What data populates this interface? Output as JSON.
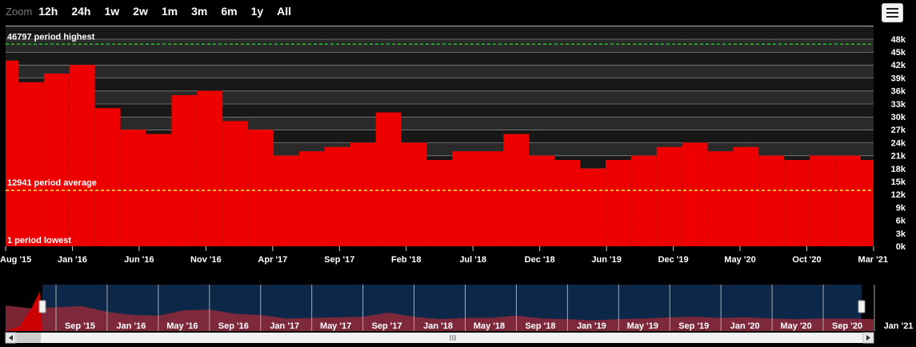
{
  "zoom": {
    "label": "Zoom",
    "buttons": [
      "12h",
      "24h",
      "1w",
      "2w",
      "1m",
      "3m",
      "6m",
      "1y",
      "All"
    ]
  },
  "menu": {
    "icon": "hamburger-menu-icon"
  },
  "colors": {
    "bar": "#ee0000",
    "highest_line": "#22bb22",
    "average_line": "#eeee33",
    "navigator_fill": "#8a2a3a",
    "navigator_bg": "#0c2748"
  },
  "chart_data": {
    "type": "bar",
    "title": "",
    "xlabel": "",
    "ylabel": "",
    "ylim": [
      0,
      50000
    ],
    "y_ticks": [
      "0k",
      "3k",
      "6k",
      "9k",
      "12k",
      "15k",
      "18k",
      "21k",
      "24k",
      "27k",
      "30k",
      "33k",
      "36k",
      "39k",
      "42k",
      "45k",
      "48k"
    ],
    "x_ticks": [
      "Aug '15",
      "Jan '16",
      "Jun '16",
      "Nov '16",
      "Apr '17",
      "Sep '17",
      "Feb '18",
      "Jul '18",
      "Dec '18",
      "Jun '19",
      "Dec '19",
      "May '20",
      "Oct '20",
      "Mar '21"
    ],
    "series": [
      {
        "x": [
          "Aug '15",
          "Oct '15",
          "Dec '15",
          "Feb '16",
          "Apr '16",
          "Jun '16",
          "Aug '16",
          "Oct '16",
          "Dec '16",
          "Feb '17",
          "Apr '17",
          "Jun '17",
          "Aug '17",
          "Oct '17",
          "Dec '17",
          "Feb '18",
          "Apr '18",
          "Jun '18",
          "Aug '18",
          "Oct '18",
          "Dec '18",
          "Feb '19",
          "Apr '19",
          "Jun '19",
          "Aug '19",
          "Oct '19",
          "Dec '19",
          "Feb '20",
          "Apr '20",
          "Jun '20",
          "Aug '20",
          "Oct '20",
          "Dec '20",
          "Feb '21",
          "Mar '21"
        ],
        "values": [
          43000,
          38000,
          40000,
          42000,
          32000,
          27000,
          26000,
          35000,
          36000,
          29000,
          27000,
          21000,
          22000,
          23000,
          24000,
          31000,
          24000,
          20000,
          22000,
          22000,
          26000,
          21000,
          20000,
          18000,
          20000,
          21000,
          23000,
          24000,
          22000,
          23000,
          21000,
          20000,
          21000,
          21000,
          20000
        ]
      }
    ],
    "reference_lines": {
      "highest": {
        "value": 46797,
        "label": "46797 period highest"
      },
      "average": {
        "value": 12941,
        "label": "12941 period average"
      },
      "lowest": {
        "value": 1,
        "label": "1 period lowest"
      }
    },
    "navigator": {
      "x_ticks": [
        "Sep '15",
        "Jan '16",
        "May '16",
        "Sep '16",
        "Jan '17",
        "May '17",
        "Sep '17",
        "Jan '18",
        "May '18",
        "Sep '18",
        "Jan '19",
        "May '19",
        "Sep '19",
        "Jan '20",
        "May '20",
        "Sep '20",
        "Jan '21"
      ]
    }
  }
}
